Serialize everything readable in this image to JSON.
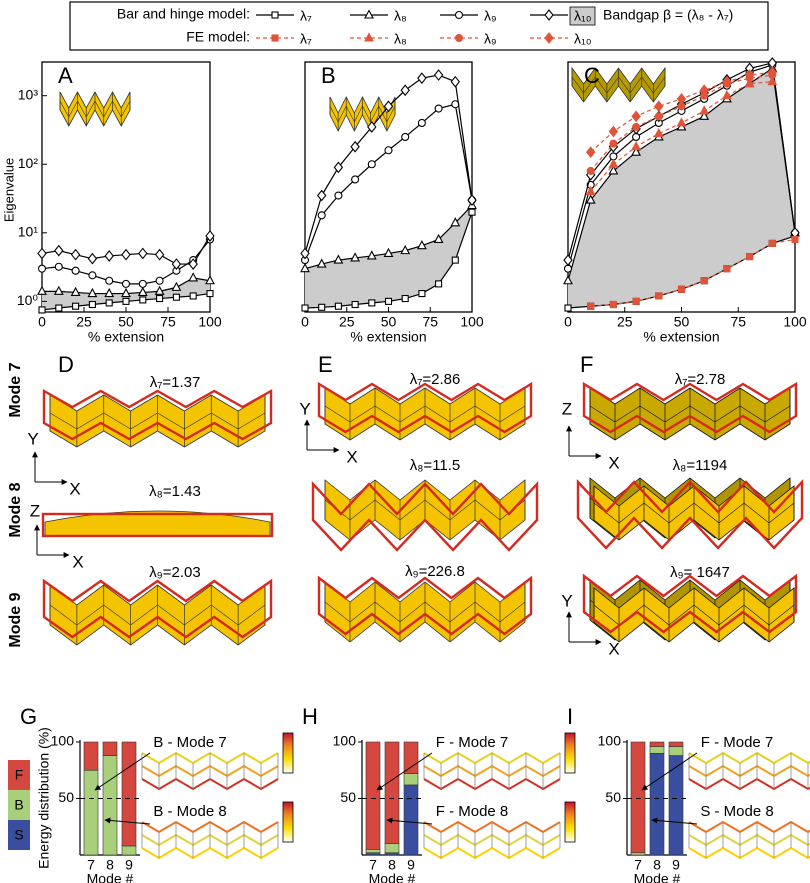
{
  "legend": {
    "row_labels": [
      "Bar and hinge model:",
      "FE model:"
    ],
    "bandgap": "Bandgap β = (λ₈ - λ₇)"
  },
  "mode_labels": [
    "Mode 7",
    "Mode 8",
    "Mode 9"
  ],
  "mode_panels": [
    {
      "letter": "D",
      "eigenvalues": [
        "λ₇=1.37",
        "λ₈=1.43",
        "λ₉=2.03"
      ],
      "axes": [
        [
          "Y",
          "X"
        ],
        [
          "Z",
          "X"
        ]
      ]
    },
    {
      "letter": "E",
      "eigenvalues": [
        "λ₇=2.86",
        "λ₈=11.5",
        "λ₉=226.8"
      ],
      "axes": [
        [
          "Y",
          "X"
        ]
      ]
    },
    {
      "letter": "F",
      "eigenvalues": [
        "λ₇=2.78",
        "λ₈=1194",
        "λ₉= 1647"
      ],
      "axes": [
        [
          "Z",
          "X"
        ],
        [
          "Y",
          "X"
        ]
      ]
    }
  ],
  "chart_data": [
    {
      "type": "line",
      "label": "A",
      "xlabel": "% extension",
      "ylabel": "Eigenvalue",
      "log_y": true,
      "x": [
        0,
        10,
        20,
        30,
        40,
        50,
        60,
        70,
        80,
        90,
        100
      ],
      "xlim": [
        0,
        100
      ],
      "xticks": [
        0,
        25,
        50,
        75,
        100
      ],
      "ylim": [
        0.7,
        3100
      ],
      "yticks": [
        {
          "value": 1,
          "label": "10⁰"
        },
        {
          "value": 10,
          "label": "10¹"
        },
        {
          "value": 100,
          "label": "10²"
        },
        {
          "value": 1000,
          "label": "10³"
        }
      ],
      "bandgap_fill": "#cccccc",
      "series": [
        {
          "marker": "square",
          "color": "#000000",
          "filled": false,
          "dashed": false,
          "values": [
            0.75,
            0.8,
            0.85,
            0.9,
            0.95,
            1.0,
            1.05,
            1.1,
            1.15,
            1.2,
            1.3
          ]
        },
        {
          "marker": "triangle",
          "color": "#000000",
          "filled": false,
          "dashed": false,
          "values": [
            1.4,
            1.4,
            1.35,
            1.3,
            1.3,
            1.3,
            1.35,
            1.4,
            1.6,
            2.2,
            2.0
          ]
        },
        {
          "marker": "circle",
          "color": "#000000",
          "filled": false,
          "dashed": false,
          "values": [
            3.0,
            3.2,
            2.8,
            2.4,
            2.0,
            1.8,
            1.8,
            2.0,
            2.8,
            4.0,
            8.0
          ]
        },
        {
          "marker": "diamond",
          "color": "#000000",
          "filled": false,
          "dashed": false,
          "values": [
            5.0,
            5.5,
            4.8,
            4.2,
            4.6,
            4.8,
            5.0,
            4.8,
            3.5,
            3.5,
            9.0
          ]
        }
      ]
    },
    {
      "type": "line",
      "label": "B",
      "xlabel": "% extension",
      "log_y": true,
      "x": [
        0,
        10,
        20,
        30,
        40,
        50,
        60,
        70,
        80,
        90,
        100
      ],
      "xlim": [
        0,
        100
      ],
      "xticks": [
        0,
        25,
        50,
        75,
        100
      ],
      "ylim": [
        0.7,
        3100
      ],
      "bandgap_fill": "#cccccc",
      "series": [
        {
          "marker": "square",
          "color": "#000000",
          "filled": false,
          "dashed": false,
          "values": [
            0.8,
            0.82,
            0.85,
            0.9,
            0.95,
            1.0,
            1.1,
            1.3,
            1.8,
            4,
            20
          ]
        },
        {
          "marker": "triangle",
          "color": "#000000",
          "filled": false,
          "dashed": false,
          "values": [
            3,
            3.5,
            4,
            4.3,
            4.6,
            5,
            5.5,
            6.5,
            8,
            14,
            25
          ]
        },
        {
          "marker": "circle",
          "color": "#000000",
          "filled": false,
          "dashed": false,
          "values": [
            4,
            18,
            35,
            60,
            100,
            160,
            250,
            400,
            650,
            750,
            30
          ]
        },
        {
          "marker": "diamond",
          "color": "#000000",
          "filled": false,
          "dashed": false,
          "values": [
            5,
            35,
            90,
            180,
            350,
            700,
            1200,
            1800,
            2000,
            1600,
            30
          ]
        }
      ]
    },
    {
      "type": "line",
      "label": "C",
      "xlabel": "% extension",
      "log_y": true,
      "x": [
        0,
        10,
        20,
        30,
        40,
        50,
        60,
        70,
        80,
        90,
        100
      ],
      "xlim": [
        0,
        100
      ],
      "xticks": [
        0,
        25,
        50,
        75,
        100
      ],
      "ylim": [
        0.7,
        3100
      ],
      "bandgap_fill": "#cccccc",
      "series": [
        {
          "name": "λ₇",
          "marker": "square",
          "color": "#000000",
          "filled": false,
          "dashed": false,
          "values": [
            0.8,
            0.85,
            0.9,
            1.0,
            1.2,
            1.5,
            2,
            3,
            4.5,
            7,
            9
          ]
        },
        {
          "name": "λ₈",
          "marker": "triangle",
          "color": "#000000",
          "filled": false,
          "dashed": false,
          "values": [
            2,
            30,
            80,
            150,
            250,
            350,
            500,
            900,
            1500,
            2500,
            10
          ]
        },
        {
          "name": "λ₉",
          "marker": "circle",
          "color": "#000000",
          "filled": false,
          "dashed": false,
          "values": [
            3,
            50,
            130,
            250,
            400,
            600,
            900,
            1400,
            2200,
            2800,
            10
          ]
        },
        {
          "name": "λ₁₀",
          "marker": "diamond",
          "color": "#000000",
          "filled": false,
          "dashed": false,
          "values": [
            4,
            70,
            180,
            330,
            500,
            750,
            1100,
            1700,
            2500,
            3000,
            10
          ]
        },
        {
          "name": "λ₇",
          "marker": "square",
          "color": "#e0553a",
          "filled": true,
          "dashed": true,
          "values": [
            null,
            0.85,
            0.9,
            1.0,
            1.2,
            1.5,
            2,
            3,
            4.5,
            7,
            8
          ]
        },
        {
          "name": "λ₈",
          "marker": "triangle",
          "color": "#e0553a",
          "filled": true,
          "dashed": true,
          "values": [
            null,
            40,
            100,
            180,
            280,
            400,
            600,
            1000,
            1500,
            1600,
            null
          ]
        },
        {
          "name": "λ₉",
          "marker": "circle",
          "color": "#e0553a",
          "filled": true,
          "dashed": true,
          "values": [
            null,
            80,
            200,
            350,
            500,
            700,
            1000,
            1500,
            1800,
            2000,
            null
          ]
        },
        {
          "name": "λ₁₀",
          "marker": "diamond",
          "color": "#e0553a",
          "filled": true,
          "dashed": true,
          "values": [
            null,
            150,
            300,
            500,
            700,
            900,
            1200,
            1600,
            2000,
            2200,
            null
          ]
        }
      ]
    },
    {
      "type": "bar",
      "label": "G",
      "ylabel": "Energy distribution (%)",
      "xlabel": "Mode #",
      "stacked": true,
      "categories": [
        "7",
        "8",
        "9"
      ],
      "ylim": [
        0,
        100
      ],
      "yticks": [
        50,
        100
      ],
      "grid": true,
      "annotations": [
        "B - Mode 7",
        "B - Mode 8"
      ],
      "series": [
        {
          "name": "S",
          "color": "#3a4ea0",
          "values": [
            0,
            0,
            0
          ]
        },
        {
          "name": "B",
          "color": "#a9cf7b",
          "values": [
            75,
            88,
            8
          ]
        },
        {
          "name": "F",
          "color": "#d4483f",
          "values": [
            25,
            12,
            92
          ]
        }
      ]
    },
    {
      "type": "bar",
      "label": "H",
      "xlabel": "Mode #",
      "stacked": true,
      "categories": [
        "7",
        "8",
        "9"
      ],
      "ylim": [
        0,
        100
      ],
      "yticks": [
        50,
        100
      ],
      "grid": true,
      "annotations": [
        "F - Mode 7",
        "F - Mode 8"
      ],
      "series": [
        {
          "color": "#3a4ea0",
          "values": [
            2,
            2,
            62
          ]
        },
        {
          "color": "#a9cf7b",
          "values": [
            3,
            8,
            10
          ]
        },
        {
          "color": "#d4483f",
          "values": [
            95,
            90,
            28
          ]
        }
      ]
    },
    {
      "type": "bar",
      "label": "I",
      "xlabel": "Mode #",
      "stacked": true,
      "categories": [
        "7",
        "8",
        "9"
      ],
      "ylim": [
        0,
        100
      ],
      "yticks": [
        50,
        100
      ],
      "grid": true,
      "annotations": [
        "F - Mode 7",
        "S - Mode 8"
      ],
      "series": [
        {
          "color": "#3a4ea0",
          "values": [
            0,
            90,
            88
          ]
        },
        {
          "color": "#a9cf7b",
          "values": [
            2,
            6,
            8
          ]
        },
        {
          "color": "#d4483f",
          "values": [
            98,
            4,
            4
          ]
        }
      ]
    }
  ]
}
